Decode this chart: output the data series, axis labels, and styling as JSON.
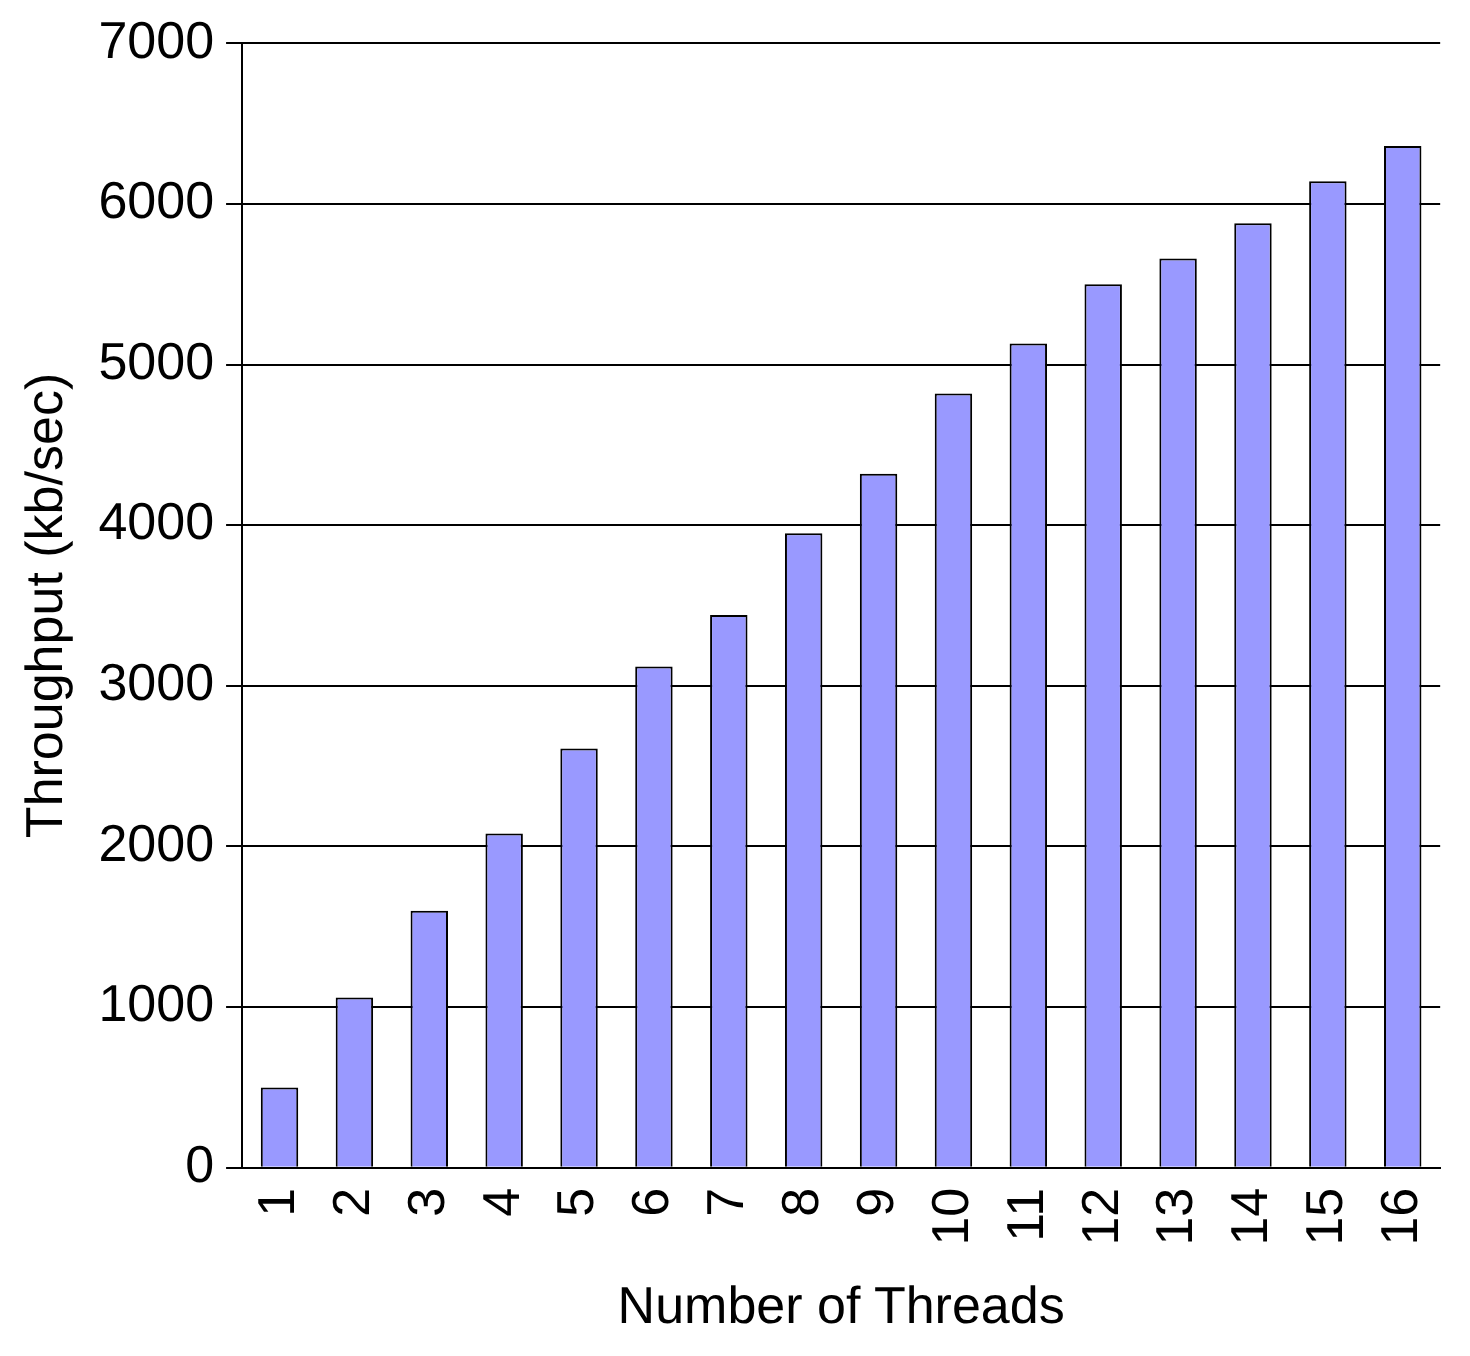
{
  "chart_data": {
    "type": "bar",
    "xlabel": "Number of Threads",
    "ylabel": "Throughput (kb/sec)",
    "categories": [
      "1",
      "2",
      "3",
      "4",
      "5",
      "6",
      "7",
      "8",
      "9",
      "10",
      "11",
      "12",
      "13",
      "14",
      "15",
      "16"
    ],
    "values": [
      500,
      1060,
      1600,
      2080,
      2610,
      3120,
      3440,
      3950,
      4320,
      4820,
      5130,
      5500,
      5660,
      5880,
      6140,
      6360
    ],
    "color": "#9999ff",
    "ylim": [
      0,
      7000
    ],
    "yticks": [
      0,
      1000,
      2000,
      3000,
      4000,
      5000,
      6000,
      7000
    ],
    "grid": "y",
    "legend": false
  }
}
